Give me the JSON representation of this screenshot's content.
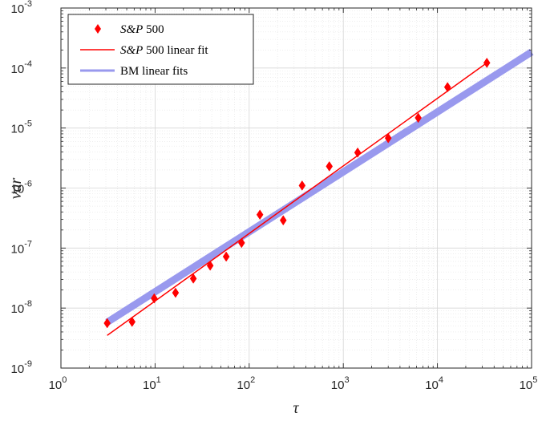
{
  "chart_data": {
    "type": "scatter",
    "xscale": "log",
    "yscale": "log",
    "xlim": [
      1,
      100000
    ],
    "ylim": [
      1e-09,
      0.001
    ],
    "xlabel": "τ",
    "ylabel": "var",
    "grid": true,
    "minor_grid": true,
    "legend_position": "top-left",
    "x_ticks": [
      {
        "base": "10",
        "exp": "0",
        "value": 1
      },
      {
        "base": "10",
        "exp": "1",
        "value": 10
      },
      {
        "base": "10",
        "exp": "2",
        "value": 100
      },
      {
        "base": "10",
        "exp": "3",
        "value": 1000
      },
      {
        "base": "10",
        "exp": "4",
        "value": 10000
      },
      {
        "base": "10",
        "exp": "5",
        "value": 100000
      }
    ],
    "y_ticks": [
      {
        "base": "10",
        "exp": "-9",
        "value": 1e-09
      },
      {
        "base": "10",
        "exp": "-8",
        "value": 1e-08
      },
      {
        "base": "10",
        "exp": "-7",
        "value": 1e-07
      },
      {
        "base": "10",
        "exp": "-6",
        "value": 1e-06
      },
      {
        "base": "10",
        "exp": "-5",
        "value": 1e-05
      },
      {
        "base": "10",
        "exp": "-4",
        "value": 0.0001
      },
      {
        "base": "10",
        "exp": "-3",
        "value": 0.001
      }
    ],
    "series": [
      {
        "name": "S&P 500",
        "name_parts": [
          {
            "text": "S&P",
            "italic": true
          },
          {
            "text": " 500",
            "italic": false
          }
        ],
        "kind": "markers",
        "marker": "diamond",
        "color": "#ff0000",
        "x": [
          3.1,
          5.7,
          9.8,
          16.5,
          25.5,
          38.5,
          57,
          83,
          130,
          230,
          365,
          710,
          1420,
          3000,
          6250,
          12800,
          33500
        ],
        "y": [
          5.6e-09,
          5.9e-09,
          1.45e-08,
          1.8e-08,
          3.1e-08,
          5.1e-08,
          7.2e-08,
          1.22e-07,
          3.6e-07,
          2.9e-07,
          1.1e-06,
          2.3e-06,
          3.9e-06,
          6.8e-06,
          1.48e-05,
          4.8e-05,
          0.000122
        ]
      },
      {
        "name": "S&P 500 linear fit",
        "name_parts": [
          {
            "text": "S&P",
            "italic": true
          },
          {
            "text": " 500 linear fit",
            "italic": false
          }
        ],
        "kind": "line",
        "color": "#ff0000",
        "x": [
          3.1,
          33500
        ],
        "y": [
          3.5e-09,
          0.000122
        ]
      },
      {
        "name": "BM linear fits",
        "name_parts": [
          {
            "text": "BM linear fits",
            "italic": false
          }
        ],
        "kind": "band",
        "color": "#9999ee",
        "x": [
          3.1,
          100000
        ],
        "y": [
          5.8e-09,
          0.000185
        ]
      }
    ]
  }
}
